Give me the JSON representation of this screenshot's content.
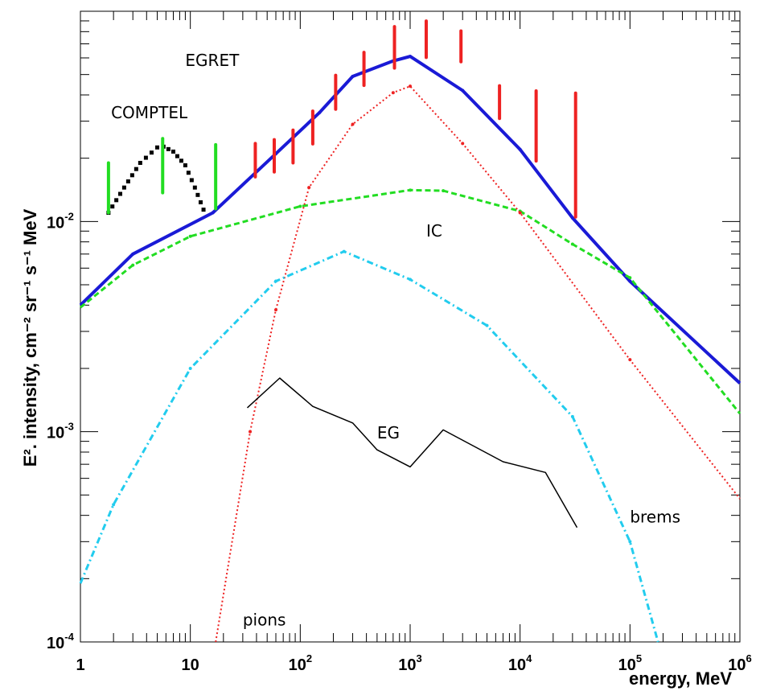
{
  "chart_data": {
    "type": "line",
    "title": "",
    "xlabel": "energy, MeV",
    "ylabel": "E². intensity, cm⁻² sr⁻¹ s⁻¹ MeV",
    "x_scale": "log",
    "y_scale": "log",
    "xlim": [
      1,
      1000000
    ],
    "ylim": [
      0.0001,
      0.1
    ],
    "grid": false,
    "legend": "none",
    "x_ticks": [
      {
        "base": "1",
        "exp": ""
      },
      {
        "base": "10",
        "exp": ""
      },
      {
        "base": "10",
        "exp": "2"
      },
      {
        "base": "10",
        "exp": "3"
      },
      {
        "base": "10",
        "exp": "4"
      },
      {
        "base": "10",
        "exp": "5"
      },
      {
        "base": "10",
        "exp": "6"
      }
    ],
    "y_ticks": [
      {
        "value": 0.0001,
        "base": "10",
        "exp": "-4"
      },
      {
        "value": 0.001,
        "base": "10",
        "exp": "-3"
      },
      {
        "value": 0.01,
        "base": "10",
        "exp": "-2"
      }
    ],
    "annotations": [
      {
        "text": "EGRET",
        "x": 9,
        "y": 0.055
      },
      {
        "text": "COMPTEL",
        "x": 1.9,
        "y": 0.031
      },
      {
        "text": "IC",
        "x": 1400,
        "y": 0.0085
      },
      {
        "text": "EG",
        "x": 500,
        "y": 0.00093
      },
      {
        "text": "brems",
        "x": 100000,
        "y": 0.00037
      },
      {
        "text": "pions",
        "x": 30,
        "y": 0.00012
      }
    ],
    "series": [
      {
        "color": "#1a1ad6",
        "style": "solid",
        "width": 4,
        "x": [
          1,
          3,
          16,
          60,
          150,
          300,
          700,
          1000,
          3000,
          10000,
          30000,
          100000,
          1000000
        ],
        "y": [
          0.004,
          0.007,
          0.011,
          0.021,
          0.033,
          0.049,
          0.058,
          0.061,
          0.042,
          0.022,
          0.0104,
          0.0052,
          0.0017
        ]
      },
      {
        "color": "#22dd22",
        "style": "dashed",
        "width": 3,
        "x": [
          1,
          3,
          10,
          100,
          1000,
          2000,
          10000,
          30000,
          100000,
          1000000
        ],
        "y": [
          0.0039,
          0.0062,
          0.0085,
          0.0118,
          0.0141,
          0.014,
          0.0112,
          0.0078,
          0.0054,
          0.00122
        ]
      },
      {
        "color": "#ee2222",
        "style": "dotted",
        "width": 2,
        "x": [
          17,
          35,
          60,
          120,
          300,
          700,
          1000,
          3000,
          10000,
          100000,
          1000000
        ],
        "y": [
          0.0001,
          0.001,
          0.0038,
          0.0145,
          0.029,
          0.041,
          0.044,
          0.0235,
          0.011,
          0.0022,
          0.00048
        ]
      },
      {
        "color": "#22ccee",
        "style": "dashdot",
        "width": 3,
        "x": [
          1,
          2,
          10,
          60,
          250,
          1000,
          5000,
          30000,
          100000,
          180000
        ],
        "y": [
          0.00019,
          0.00045,
          0.002,
          0.0052,
          0.0072,
          0.0053,
          0.0032,
          0.00118,
          0.0003,
          0.0001
        ]
      },
      {
        "color": "#000000",
        "style": "solid",
        "width": 1.5,
        "x": [
          33,
          65,
          130,
          300,
          500,
          1000,
          2000,
          7000,
          17000,
          33000
        ],
        "y": [
          0.0013,
          0.0018,
          0.00132,
          0.0011,
          0.00082,
          0.00068,
          0.00102,
          0.00072,
          0.00064,
          0.00035
        ]
      },
      {
        "color": "#000000",
        "style": "squares",
        "width": 5,
        "x": [
          1.8,
          2.5,
          3.5,
          5,
          5.7,
          7,
          9,
          11,
          14
        ],
        "y": [
          0.011,
          0.0145,
          0.019,
          0.0225,
          0.0227,
          0.0215,
          0.0185,
          0.0145,
          0.0105
        ]
      }
    ],
    "error_bars": [
      {
        "group": "COMPTEL",
        "color": "#22dd22",
        "bars": [
          {
            "x": 1.8,
            "low": 0.011,
            "high": 0.019
          },
          {
            "x": 5.6,
            "low": 0.0137,
            "high": 0.0248
          },
          {
            "x": 17,
            "low": 0.0115,
            "high": 0.0232
          }
        ]
      },
      {
        "group": "EGRET",
        "color": "#ee2222",
        "bars": [
          {
            "x": 39,
            "low": 0.0163,
            "high": 0.0235
          },
          {
            "x": 58,
            "low": 0.0172,
            "high": 0.0245
          },
          {
            "x": 86,
            "low": 0.019,
            "high": 0.0272
          },
          {
            "x": 130,
            "low": 0.0234,
            "high": 0.0335
          },
          {
            "x": 210,
            "low": 0.0342,
            "high": 0.0496
          },
          {
            "x": 380,
            "low": 0.0444,
            "high": 0.0637
          },
          {
            "x": 720,
            "low": 0.0537,
            "high": 0.0845
          },
          {
            "x": 1400,
            "low": 0.0603,
            "high": 0.0899
          },
          {
            "x": 2900,
            "low": 0.0575,
            "high": 0.0806
          },
          {
            "x": 6500,
            "low": 0.0309,
            "high": 0.0442
          },
          {
            "x": 14000,
            "low": 0.0194,
            "high": 0.0418
          },
          {
            "x": 32000,
            "low": 0.0105,
            "high": 0.0408
          }
        ]
      }
    ]
  }
}
